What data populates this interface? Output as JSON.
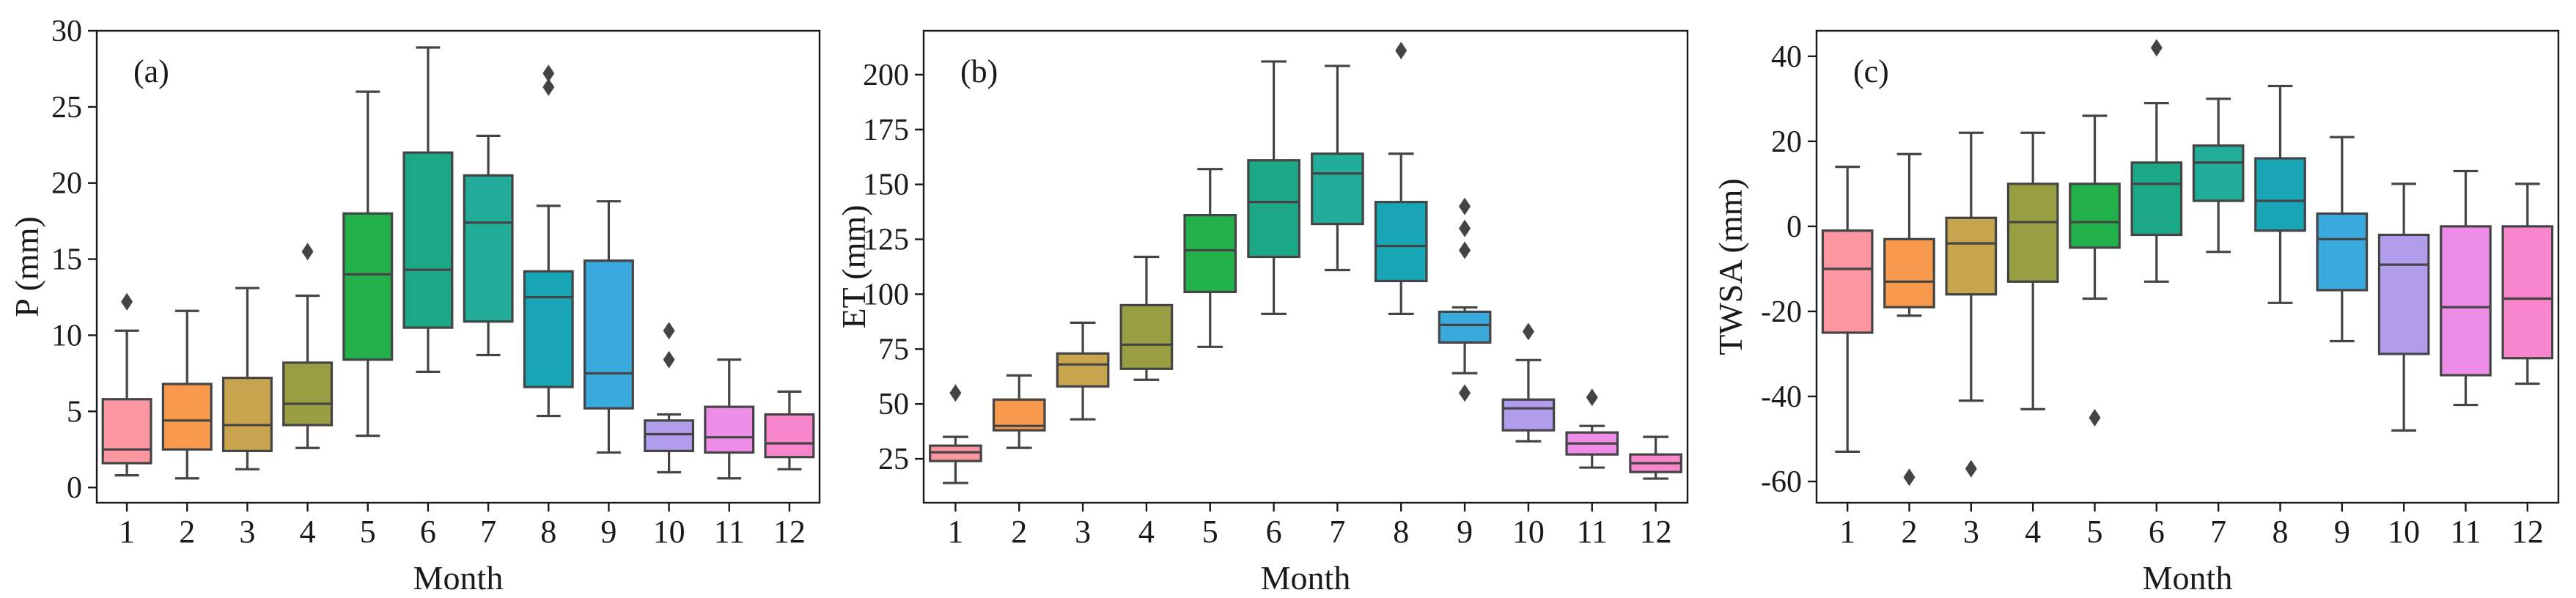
{
  "colors": {
    "1": "#fc96a0",
    "2": "#f89a4e",
    "3": "#c9a44f",
    "4": "#9a9e43",
    "5": "#22b04a",
    "6": "#1aa887",
    "7": "#22ac9a",
    "8": "#18a6b6",
    "9": "#3aa9dd",
    "10": "#b29cec",
    "11": "#ee8de7",
    "12": "#f886cc",
    "stroke": "#444444",
    "axis": "#1a1a1a"
  },
  "chart_data": [
    {
      "type": "box",
      "panel_label": "(a)",
      "xlabel": "Month",
      "ylabel": "P (mm)",
      "ylim": [
        -1,
        30
      ],
      "yticks": [
        0,
        5,
        10,
        15,
        20,
        25,
        30
      ],
      "ytick_labels": [
        "0",
        "5",
        "10",
        "15",
        "20",
        "25",
        "30"
      ],
      "categories": [
        "1",
        "2",
        "3",
        "4",
        "5",
        "6",
        "7",
        "8",
        "9",
        "10",
        "11",
        "12"
      ],
      "boxes": [
        {
          "whislo": 0.8,
          "q1": 1.6,
          "med": 2.5,
          "q3": 5.8,
          "whishi": 10.3,
          "fliers": [
            12.2
          ]
        },
        {
          "whislo": 0.6,
          "q1": 2.5,
          "med": 4.4,
          "q3": 6.8,
          "whishi": 11.6,
          "fliers": []
        },
        {
          "whislo": 1.2,
          "q1": 2.4,
          "med": 4.1,
          "q3": 7.2,
          "whishi": 13.1,
          "fliers": []
        },
        {
          "whislo": 2.6,
          "q1": 4.1,
          "med": 5.5,
          "q3": 8.2,
          "whishi": 12.6,
          "fliers": [
            15.5
          ]
        },
        {
          "whislo": 3.4,
          "q1": 8.4,
          "med": 14.0,
          "q3": 18.0,
          "whishi": 26.0,
          "fliers": []
        },
        {
          "whislo": 7.6,
          "q1": 10.5,
          "med": 14.3,
          "q3": 22.0,
          "whishi": 28.9,
          "fliers": []
        },
        {
          "whislo": 8.7,
          "q1": 10.9,
          "med": 17.4,
          "q3": 20.5,
          "whishi": 23.1,
          "fliers": []
        },
        {
          "whislo": 4.7,
          "q1": 6.6,
          "med": 12.5,
          "q3": 14.2,
          "whishi": 18.5,
          "fliers": [
            26.3,
            27.2
          ]
        },
        {
          "whislo": 2.3,
          "q1": 5.2,
          "med": 7.5,
          "q3": 14.9,
          "whishi": 18.8,
          "fliers": []
        },
        {
          "whislo": 1.0,
          "q1": 2.4,
          "med": 3.5,
          "q3": 4.4,
          "whishi": 4.8,
          "fliers": [
            8.4,
            10.3
          ]
        },
        {
          "whislo": 0.6,
          "q1": 2.3,
          "med": 3.3,
          "q3": 5.3,
          "whishi": 8.4,
          "fliers": []
        },
        {
          "whislo": 1.2,
          "q1": 2.0,
          "med": 2.9,
          "q3": 4.8,
          "whishi": 6.3,
          "fliers": []
        }
      ]
    },
    {
      "type": "box",
      "panel_label": "(b)",
      "xlabel": "Month",
      "ylabel": "ET (mm)",
      "ylim": [
        5,
        220
      ],
      "yticks": [
        25,
        50,
        75,
        100,
        125,
        150,
        175,
        200
      ],
      "ytick_labels": [
        "25",
        "50",
        "75",
        "100",
        "125",
        "150",
        "175",
        "200"
      ],
      "categories": [
        "1",
        "2",
        "3",
        "4",
        "5",
        "6",
        "7",
        "8",
        "9",
        "10",
        "11",
        "12"
      ],
      "boxes": [
        {
          "whislo": 14,
          "q1": 24,
          "med": 28,
          "q3": 31,
          "whishi": 35,
          "fliers": [
            55
          ]
        },
        {
          "whislo": 30,
          "q1": 38,
          "med": 40,
          "q3": 52,
          "whishi": 63,
          "fliers": []
        },
        {
          "whislo": 43,
          "q1": 58,
          "med": 68,
          "q3": 73,
          "whishi": 87,
          "fliers": []
        },
        {
          "whislo": 61,
          "q1": 66,
          "med": 77,
          "q3": 95,
          "whishi": 117,
          "fliers": []
        },
        {
          "whislo": 76,
          "q1": 101,
          "med": 120,
          "q3": 136,
          "whishi": 157,
          "fliers": []
        },
        {
          "whislo": 91,
          "q1": 117,
          "med": 142,
          "q3": 161,
          "whishi": 206,
          "fliers": []
        },
        {
          "whislo": 111,
          "q1": 132,
          "med": 155,
          "q3": 164,
          "whishi": 204,
          "fliers": []
        },
        {
          "whislo": 91,
          "q1": 106,
          "med": 122,
          "q3": 142,
          "whishi": 164,
          "fliers": [
            211
          ]
        },
        {
          "whislo": 64,
          "q1": 78,
          "med": 86,
          "q3": 92,
          "whishi": 94,
          "fliers": [
            55,
            120,
            130,
            140
          ]
        },
        {
          "whislo": 33,
          "q1": 38,
          "med": 48,
          "q3": 52,
          "whishi": 70,
          "fliers": [
            83
          ]
        },
        {
          "whislo": 21,
          "q1": 27,
          "med": 32,
          "q3": 37,
          "whishi": 40,
          "fliers": [
            53
          ]
        },
        {
          "whislo": 16,
          "q1": 19,
          "med": 23,
          "q3": 27,
          "whishi": 35,
          "fliers": []
        }
      ]
    },
    {
      "type": "box",
      "panel_label": "(c)",
      "xlabel": "Month",
      "ylabel": "TWSA (mm)",
      "ylim": [
        -65,
        46
      ],
      "yticks": [
        -60,
        -40,
        -20,
        0,
        20,
        40
      ],
      "ytick_labels": [
        "-60",
        "-40",
        "-20",
        "0",
        "20",
        "40"
      ],
      "categories": [
        "1",
        "2",
        "3",
        "4",
        "5",
        "6",
        "7",
        "8",
        "9",
        "10",
        "11",
        "12"
      ],
      "boxes": [
        {
          "whislo": -53,
          "q1": -25,
          "med": -10,
          "q3": -1,
          "whishi": 14,
          "fliers": []
        },
        {
          "whislo": -21,
          "q1": -19,
          "med": -13,
          "q3": -3,
          "whishi": 17,
          "fliers": [
            -59
          ]
        },
        {
          "whislo": -41,
          "q1": -16,
          "med": -4,
          "q3": 2,
          "whishi": 22,
          "fliers": [
            -57
          ]
        },
        {
          "whislo": -43,
          "q1": -13,
          "med": 1,
          "q3": 10,
          "whishi": 22,
          "fliers": []
        },
        {
          "whislo": -17,
          "q1": -5,
          "med": 1,
          "q3": 10,
          "whishi": 26,
          "fliers": [
            -45
          ]
        },
        {
          "whislo": -13,
          "q1": -2,
          "med": 10,
          "q3": 15,
          "whishi": 29,
          "fliers": [
            42
          ]
        },
        {
          "whislo": -6,
          "q1": 6,
          "med": 15,
          "q3": 19,
          "whishi": 30,
          "fliers": []
        },
        {
          "whislo": -18,
          "q1": -1,
          "med": 6,
          "q3": 16,
          "whishi": 33,
          "fliers": []
        },
        {
          "whislo": -27,
          "q1": -15,
          "med": -3,
          "q3": 3,
          "whishi": 21,
          "fliers": []
        },
        {
          "whislo": -48,
          "q1": -30,
          "med": -9,
          "q3": -2,
          "whishi": 10,
          "fliers": []
        },
        {
          "whislo": -42,
          "q1": -35,
          "med": -19,
          "q3": 0,
          "whishi": 13,
          "fliers": []
        },
        {
          "whislo": -37,
          "q1": -31,
          "med": -17,
          "q3": 0,
          "whishi": 10,
          "fliers": []
        }
      ]
    }
  ]
}
